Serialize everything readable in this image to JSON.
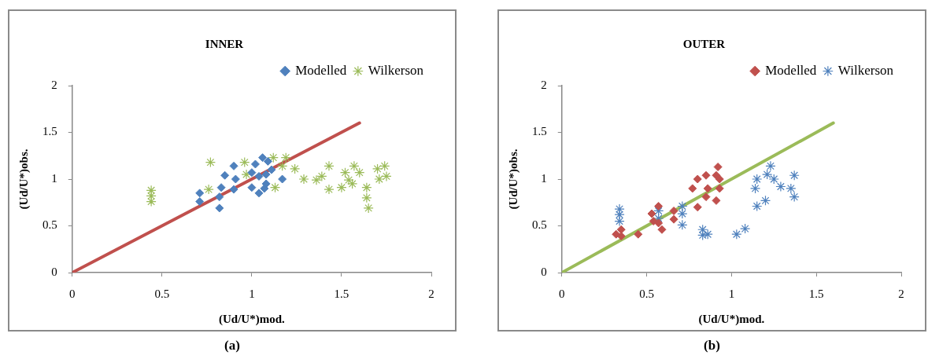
{
  "chart_data": [
    {
      "type": "scatter",
      "title": "INNER",
      "xlabel": "(Ud/U*)mod.",
      "ylabel": "(Ud/U*)obs.",
      "xlim": [
        0,
        2
      ],
      "ylim": [
        0,
        2
      ],
      "xticks": [
        0,
        0.5,
        1,
        1.5,
        2
      ],
      "yticks": [
        0,
        0.5,
        1,
        1.5,
        2
      ],
      "grid": false,
      "legend": "top right",
      "annotations": [
        "(a)"
      ],
      "series": [
        {
          "name": "Modelled",
          "color": "#4f81bd",
          "marker": "diamond",
          "x": [
            0.71,
            0.71,
            0.82,
            0.82,
            0.83,
            0.9,
            0.85,
            0.9,
            0.91,
            1.0,
            1.0,
            1.04,
            1.06,
            1.02,
            1.08,
            1.08,
            1.11,
            1.17,
            1.04,
            1.07,
            1.09
          ],
          "values": [
            0.85,
            0.76,
            0.69,
            0.81,
            0.91,
            0.89,
            1.04,
            1.14,
            1.0,
            1.07,
            0.91,
            0.85,
            1.23,
            1.16,
            1.05,
            0.95,
            1.1,
            1.0,
            1.03,
            0.9,
            1.19
          ]
        },
        {
          "name": "Wilkerson",
          "color": "#9bbb59",
          "marker": "cross",
          "x": [
            0.44,
            0.44,
            0.44,
            0.77,
            0.76,
            0.96,
            0.97,
            1.12,
            1.19,
            1.17,
            1.24,
            1.13,
            1.29,
            1.36,
            1.39,
            1.43,
            1.43,
            1.52,
            1.5,
            1.57,
            1.56,
            1.6,
            1.64,
            1.64,
            1.65,
            1.7,
            1.74,
            1.75,
            1.71,
            1.54
          ],
          "values": [
            0.88,
            0.76,
            0.82,
            1.18,
            0.89,
            1.18,
            1.05,
            1.23,
            1.23,
            1.14,
            1.11,
            0.91,
            1.0,
            0.99,
            1.03,
            1.14,
            0.89,
            1.07,
            0.91,
            1.14,
            0.95,
            1.07,
            0.91,
            0.8,
            0.69,
            1.11,
            1.14,
            1.03,
            1.0,
            0.99
          ]
        },
        {
          "type": "line",
          "color": "#c0504d",
          "marker": "none",
          "x": [
            0,
            1.6
          ],
          "values": [
            0,
            1.6
          ]
        }
      ]
    },
    {
      "type": "scatter",
      "title": "OUTER",
      "xlabel": "(Ud/U*)mod.",
      "ylabel": "(Ud/U*)obs.",
      "xlim": [
        0,
        2
      ],
      "ylim": [
        0,
        2
      ],
      "xticks": [
        0,
        0.5,
        1,
        1.5,
        2
      ],
      "yticks": [
        0,
        0.5,
        1,
        1.5,
        2
      ],
      "grid": false,
      "legend": "top right",
      "annotations": [
        "(b)"
      ],
      "series": [
        {
          "name": "Modelled",
          "color": "#c0504d",
          "marker": "diamond",
          "x": [
            0.32,
            0.35,
            0.35,
            0.45,
            0.53,
            0.54,
            0.57,
            0.59,
            0.57,
            0.66,
            0.66,
            0.77,
            0.8,
            0.8,
            0.85,
            0.86,
            0.85,
            0.91,
            0.91,
            0.92,
            0.93,
            0.93
          ],
          "values": [
            0.41,
            0.46,
            0.39,
            0.41,
            0.63,
            0.55,
            0.71,
            0.46,
            0.53,
            0.66,
            0.57,
            0.9,
            1.0,
            0.7,
            1.04,
            0.9,
            0.81,
            0.77,
            1.04,
            1.13,
            1.0,
            0.9
          ]
        },
        {
          "name": "Wilkerson",
          "color": "#4f81bd",
          "marker": "cross",
          "x": [
            0.34,
            0.34,
            0.34,
            0.57,
            0.57,
            0.71,
            0.71,
            0.71,
            0.83,
            0.83,
            0.86,
            1.03,
            1.08,
            1.15,
            1.14,
            1.15,
            1.2,
            1.21,
            1.23,
            1.25,
            1.29,
            1.35,
            1.37,
            1.37
          ],
          "values": [
            0.68,
            0.62,
            0.55,
            0.66,
            0.58,
            0.71,
            0.63,
            0.51,
            0.46,
            0.4,
            0.41,
            0.41,
            0.47,
            1.0,
            0.9,
            0.71,
            0.77,
            1.05,
            1.14,
            1.0,
            0.92,
            0.9,
            1.04,
            0.81
          ]
        },
        {
          "type": "line",
          "color": "#9bbb59",
          "marker": "none",
          "x": [
            0,
            1.6
          ],
          "values": [
            0,
            1.6
          ]
        }
      ]
    }
  ]
}
